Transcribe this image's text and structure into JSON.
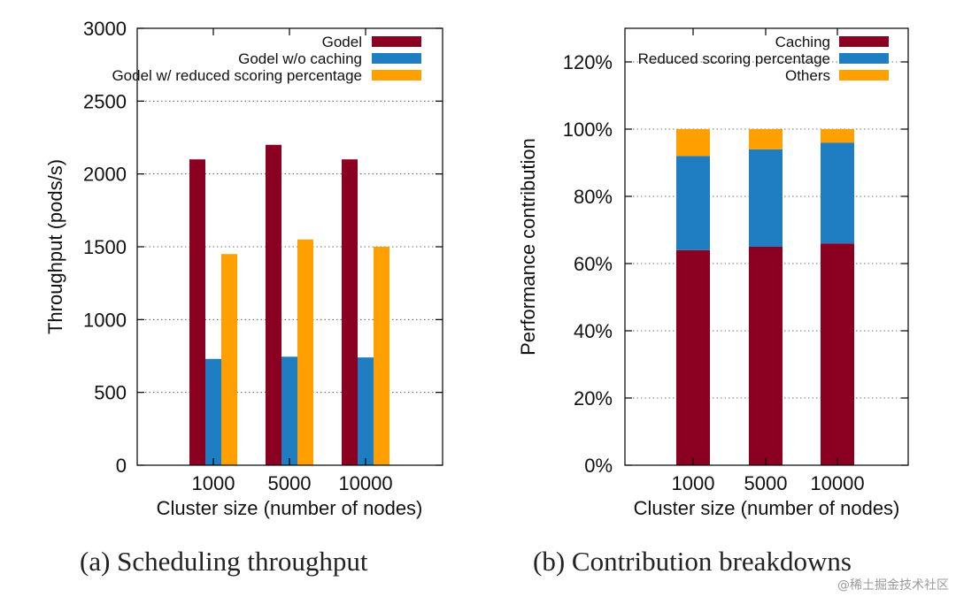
{
  "chart_data": [
    {
      "type": "bar",
      "categories": [
        "1000",
        "5000",
        "10000"
      ],
      "series": [
        {
          "name": "Godel",
          "values": [
            2100,
            2200,
            2100
          ],
          "color": "#8b0020"
        },
        {
          "name": "Godel w/o caching",
          "values": [
            730,
            745,
            740
          ],
          "color": "#1f7dc1"
        },
        {
          "name": "Godel w/ reduced scoring percentage",
          "values": [
            1450,
            1550,
            1500
          ],
          "color": "#ffa000"
        }
      ],
      "xlabel": "Cluster size (number of nodes)",
      "ylabel": "Throughput (pods/s)",
      "ylim": [
        0,
        3000
      ],
      "yticks": [
        0,
        500,
        1000,
        1500,
        2000,
        2500,
        3000
      ],
      "ytick_labels": [
        "0",
        "500",
        "1000",
        "1500",
        "2000",
        "2500",
        "3000"
      ],
      "grid": true,
      "legend_position": "top-right",
      "caption": "(a)  Scheduling throughput"
    },
    {
      "type": "bar",
      "stacked": true,
      "categories": [
        "1000",
        "5000",
        "10000"
      ],
      "series": [
        {
          "name": "Caching",
          "values": [
            64,
            65,
            66
          ],
          "color": "#8b0020"
        },
        {
          "name": "Reduced scoring percentage",
          "values": [
            28,
            29,
            30
          ],
          "color": "#1f7dc1"
        },
        {
          "name": "Others",
          "values": [
            8,
            6,
            4
          ],
          "color": "#ffa000"
        }
      ],
      "xlabel": "Cluster size (number of nodes)",
      "ylabel": "Performance contribution",
      "ylim": [
        0,
        130
      ],
      "yticks": [
        0,
        20,
        40,
        60,
        80,
        100,
        120
      ],
      "ytick_labels": [
        "0%",
        "20%",
        "40%",
        "60%",
        "80%",
        "100%",
        "120%"
      ],
      "grid": true,
      "legend_position": "top-right",
      "caption": "(b)  Contribution breakdowns"
    }
  ],
  "watermark": "@稀土掘金技术社区"
}
